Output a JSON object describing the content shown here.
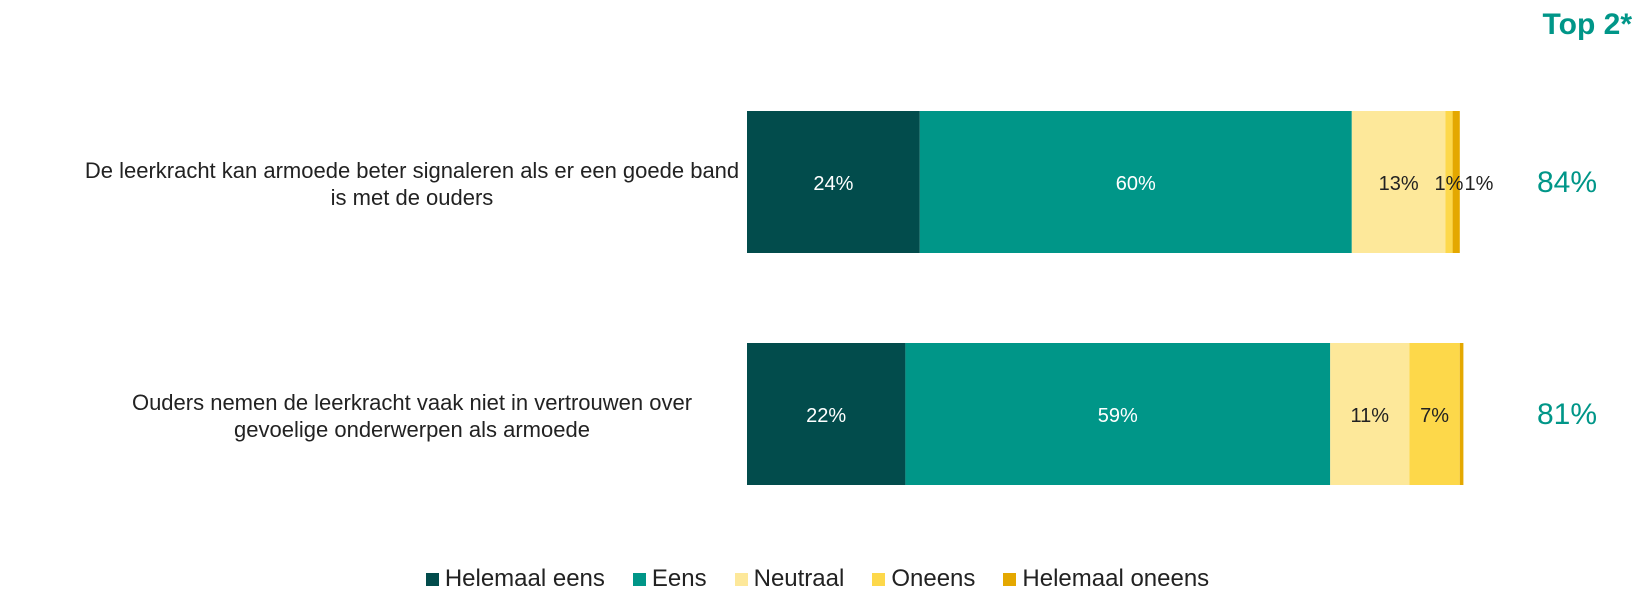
{
  "top2_header": "Top 2*",
  "chart_data": {
    "type": "bar",
    "orientation": "horizontal",
    "stacked": true,
    "categories": [
      "De leerkracht kan armoede beter signaleren als er een goede band is met de ouders",
      "Ouders nemen de leerkracht vaak niet in vertrouwen over gevoelige onderwerpen als armoede"
    ],
    "category_lines": [
      [
        "De leerkracht kan armoede beter signaleren als er een goede band",
        "is met de ouders"
      ],
      [
        "Ouders nemen de leerkracht vaak niet in vertrouwen over",
        "gevoelige onderwerpen als armoede"
      ]
    ],
    "series": [
      {
        "name": "Helemaal eens",
        "color": "#024c4c",
        "label_color": "#ffffff",
        "values": [
          24,
          22
        ],
        "labels": [
          "24%",
          "22%"
        ]
      },
      {
        "name": "Eens",
        "color": "#009688",
        "label_color": "#ffffff",
        "values": [
          60,
          59
        ],
        "labels": [
          "60%",
          "59%"
        ]
      },
      {
        "name": "Neutraal",
        "color": "#fde89a",
        "label_color": "#222222",
        "values": [
          13,
          11
        ],
        "labels": [
          "13%",
          "11%"
        ]
      },
      {
        "name": "Oneens",
        "color": "#fdd84a",
        "label_color": "#222222",
        "values": [
          1,
          7
        ],
        "labels": [
          "1%",
          "7%"
        ]
      },
      {
        "name": "Helemaal oneens",
        "color": "#e4a800",
        "label_color": "#222222",
        "values": [
          1,
          0.5
        ],
        "labels": [
          "1%",
          ""
        ]
      }
    ],
    "top2": [
      "84%",
      "81%"
    ],
    "top2_color": "#009688",
    "xlim": [
      0,
      100
    ],
    "legend_position": "bottom",
    "grid": false
  }
}
